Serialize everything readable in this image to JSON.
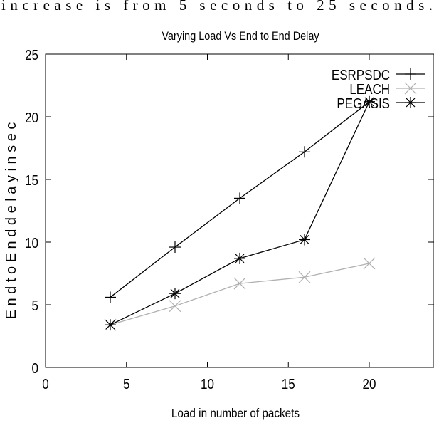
{
  "header_text_fragment": "increase is from 5 seconds to 25 seconds.",
  "chart_data": {
    "type": "line",
    "title": "Varying Load Vs End to End Delay",
    "xlabel": "Load in number of packets",
    "ylabel": "E n d  t o  E n d  d e l a y  i n  s e c",
    "xlim": [
      0,
      24
    ],
    "ylim": [
      0,
      25
    ],
    "xticks": [
      0,
      5,
      10,
      15,
      20
    ],
    "yticks": [
      0,
      5,
      10,
      15,
      20,
      25
    ],
    "grid": false,
    "legend_position": "top-right",
    "series": [
      {
        "name": "ESRPSDC",
        "color": "#000000",
        "marker": "plus",
        "x": [
          4,
          8,
          12,
          16,
          20
        ],
        "y": [
          5.6,
          9.6,
          13.5,
          17.2,
          21.2
        ]
      },
      {
        "name": "LEACH",
        "color": "#b0b0b0",
        "marker": "cross",
        "x": [
          4,
          8,
          12,
          16,
          20
        ],
        "y": [
          3.4,
          4.9,
          6.7,
          7.2,
          8.3
        ]
      },
      {
        "name": "PEGASIS",
        "color": "#000000",
        "marker": "star",
        "x": [
          4,
          8,
          12,
          16,
          20
        ],
        "y": [
          3.4,
          5.9,
          8.7,
          10.2,
          21.2
        ]
      }
    ]
  }
}
